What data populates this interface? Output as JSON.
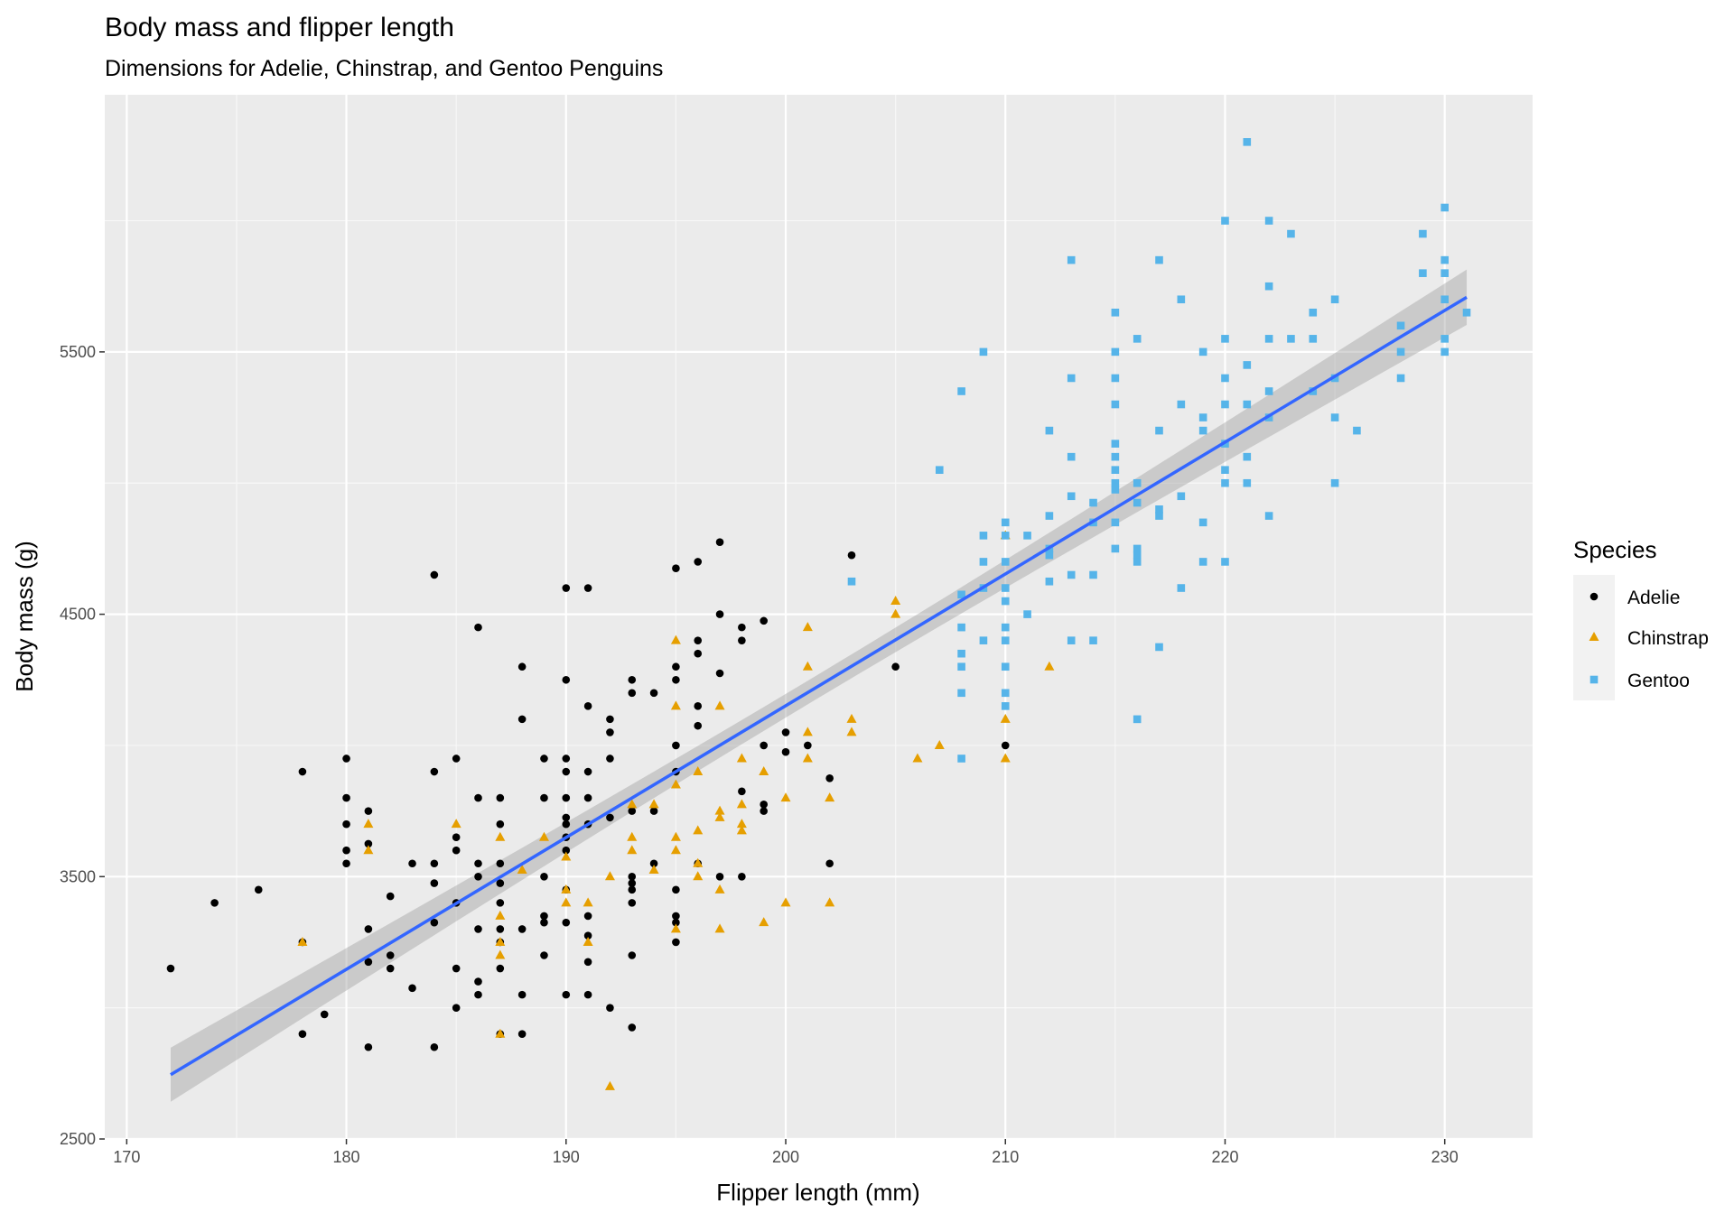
{
  "chart_data": {
    "type": "scatter",
    "title": "Body mass and flipper length",
    "subtitle": "Dimensions for Adelie, Chinstrap, and Gentoo Penguins",
    "xlabel": "Flipper length (mm)",
    "ylabel": "Body mass (g)",
    "xlim": [
      169,
      234
    ],
    "ylim": [
      2500,
      6480
    ],
    "x_ticks": [
      170,
      180,
      190,
      200,
      210,
      220,
      230
    ],
    "y_ticks": [
      2500,
      3500,
      4500,
      5500
    ],
    "grid": true,
    "background": "#EBEBEB",
    "legend": {
      "title": "Species",
      "placement": "right"
    },
    "trend": {
      "method": "linear regression",
      "color": "#3366FF",
      "confidence_band": true,
      "band_color": "#999999"
    },
    "series": [
      {
        "name": "Adelie",
        "color": "#000000",
        "marker": "circle",
        "points": [
          [
            172,
            3150
          ],
          [
            174,
            3400
          ],
          [
            176,
            3450
          ],
          [
            178,
            3900
          ],
          [
            178,
            3250
          ],
          [
            178,
            2900
          ],
          [
            179,
            2975
          ],
          [
            180,
            3950
          ],
          [
            180,
            3800
          ],
          [
            180,
            3700
          ],
          [
            180,
            3600
          ],
          [
            180,
            3550
          ],
          [
            181,
            3750
          ],
          [
            181,
            3625
          ],
          [
            181,
            3300
          ],
          [
            181,
            3175
          ],
          [
            181,
            2850
          ],
          [
            182,
            3425
          ],
          [
            182,
            3200
          ],
          [
            182,
            3150
          ],
          [
            183,
            3550
          ],
          [
            183,
            3075
          ],
          [
            184,
            4650
          ],
          [
            184,
            3900
          ],
          [
            184,
            3550
          ],
          [
            184,
            3475
          ],
          [
            184,
            3325
          ],
          [
            184,
            2850
          ],
          [
            185,
            3950
          ],
          [
            185,
            3650
          ],
          [
            185,
            3600
          ],
          [
            185,
            3400
          ],
          [
            185,
            3150
          ],
          [
            185,
            3000
          ],
          [
            186,
            4450
          ],
          [
            186,
            3800
          ],
          [
            186,
            3550
          ],
          [
            186,
            3500
          ],
          [
            186,
            3300
          ],
          [
            186,
            3100
          ],
          [
            186,
            3050
          ],
          [
            187,
            3800
          ],
          [
            187,
            3700
          ],
          [
            187,
            3550
          ],
          [
            187,
            3475
          ],
          [
            187,
            3400
          ],
          [
            187,
            3300
          ],
          [
            187,
            3250
          ],
          [
            187,
            3150
          ],
          [
            187,
            2900
          ],
          [
            188,
            4300
          ],
          [
            188,
            4100
          ],
          [
            188,
            3300
          ],
          [
            188,
            3050
          ],
          [
            188,
            2900
          ],
          [
            189,
            3950
          ],
          [
            189,
            3800
          ],
          [
            189,
            3500
          ],
          [
            189,
            3350
          ],
          [
            189,
            3325
          ],
          [
            189,
            3200
          ],
          [
            190,
            4600
          ],
          [
            190,
            4250
          ],
          [
            190,
            3950
          ],
          [
            190,
            3900
          ],
          [
            190,
            3800
          ],
          [
            190,
            3725
          ],
          [
            190,
            3700
          ],
          [
            190,
            3650
          ],
          [
            190,
            3600
          ],
          [
            190,
            3450
          ],
          [
            190,
            3325
          ],
          [
            190,
            3050
          ],
          [
            191,
            4600
          ],
          [
            191,
            4150
          ],
          [
            191,
            3900
          ],
          [
            191,
            3800
          ],
          [
            191,
            3700
          ],
          [
            191,
            3350
          ],
          [
            191,
            3275
          ],
          [
            191,
            3175
          ],
          [
            191,
            3050
          ],
          [
            192,
            4100
          ],
          [
            192,
            4050
          ],
          [
            192,
            3950
          ],
          [
            192,
            3725
          ],
          [
            192,
            3000
          ],
          [
            193,
            4250
          ],
          [
            193,
            4200
          ],
          [
            193,
            3750
          ],
          [
            193,
            3500
          ],
          [
            193,
            3475
          ],
          [
            193,
            3450
          ],
          [
            193,
            3400
          ],
          [
            193,
            3200
          ],
          [
            193,
            2925
          ],
          [
            194,
            4200
          ],
          [
            194,
            3750
          ],
          [
            194,
            3550
          ],
          [
            195,
            4675
          ],
          [
            195,
            4300
          ],
          [
            195,
            4250
          ],
          [
            195,
            4000
          ],
          [
            195,
            3900
          ],
          [
            195,
            3450
          ],
          [
            195,
            3350
          ],
          [
            195,
            3325
          ],
          [
            195,
            3250
          ],
          [
            196,
            4700
          ],
          [
            196,
            4400
          ],
          [
            196,
            4350
          ],
          [
            196,
            4150
          ],
          [
            196,
            4075
          ],
          [
            196,
            3550
          ],
          [
            197,
            4775
          ],
          [
            197,
            4500
          ],
          [
            197,
            4275
          ],
          [
            197,
            3500
          ],
          [
            198,
            4450
          ],
          [
            198,
            4400
          ],
          [
            198,
            3825
          ],
          [
            198,
            3500
          ],
          [
            199,
            4475
          ],
          [
            199,
            4000
          ],
          [
            199,
            3775
          ],
          [
            199,
            3750
          ],
          [
            200,
            4050
          ],
          [
            200,
            3975
          ],
          [
            201,
            4000
          ],
          [
            202,
            3875
          ],
          [
            202,
            3550
          ],
          [
            203,
            4725
          ],
          [
            205,
            4300
          ],
          [
            210,
            4000
          ]
        ]
      },
      {
        "name": "Chinstrap",
        "color": "#E69F00",
        "marker": "triangle",
        "points": [
          [
            178,
            3250
          ],
          [
            181,
            3700
          ],
          [
            181,
            3600
          ],
          [
            185,
            3700
          ],
          [
            187,
            3650
          ],
          [
            187,
            3350
          ],
          [
            187,
            3250
          ],
          [
            187,
            3200
          ],
          [
            187,
            2900
          ],
          [
            188,
            3525
          ],
          [
            189,
            3650
          ],
          [
            190,
            3575
          ],
          [
            190,
            3450
          ],
          [
            190,
            3400
          ],
          [
            191,
            3400
          ],
          [
            191,
            3250
          ],
          [
            192,
            3500
          ],
          [
            192,
            2700
          ],
          [
            193,
            3775
          ],
          [
            193,
            3650
          ],
          [
            193,
            3600
          ],
          [
            194,
            3775
          ],
          [
            194,
            3525
          ],
          [
            195,
            4400
          ],
          [
            195,
            4150
          ],
          [
            195,
            3850
          ],
          [
            195,
            3650
          ],
          [
            195,
            3600
          ],
          [
            195,
            3300
          ],
          [
            196,
            3900
          ],
          [
            196,
            3675
          ],
          [
            196,
            3550
          ],
          [
            196,
            3500
          ],
          [
            197,
            4150
          ],
          [
            197,
            3750
          ],
          [
            197,
            3725
          ],
          [
            197,
            3450
          ],
          [
            197,
            3300
          ],
          [
            198,
            3950
          ],
          [
            198,
            3775
          ],
          [
            198,
            3700
          ],
          [
            198,
            3675
          ],
          [
            199,
            3900
          ],
          [
            199,
            3325
          ],
          [
            200,
            3800
          ],
          [
            200,
            3400
          ],
          [
            201,
            4450
          ],
          [
            201,
            4300
          ],
          [
            201,
            4050
          ],
          [
            201,
            3950
          ],
          [
            202,
            3800
          ],
          [
            202,
            3400
          ],
          [
            203,
            4100
          ],
          [
            203,
            4050
          ],
          [
            205,
            4550
          ],
          [
            205,
            4500
          ],
          [
            206,
            3950
          ],
          [
            207,
            4000
          ],
          [
            210,
            4800
          ],
          [
            210,
            4100
          ],
          [
            210,
            3950
          ],
          [
            212,
            4300
          ]
        ]
      },
      {
        "name": "Gentoo",
        "color": "#56B4E9",
        "marker": "square",
        "points": [
          [
            203,
            4625
          ],
          [
            207,
            5050
          ],
          [
            208,
            5350
          ],
          [
            208,
            4575
          ],
          [
            208,
            4450
          ],
          [
            208,
            4350
          ],
          [
            208,
            4300
          ],
          [
            208,
            4200
          ],
          [
            208,
            3950
          ],
          [
            209,
            5500
          ],
          [
            209,
            4800
          ],
          [
            209,
            4700
          ],
          [
            209,
            4600
          ],
          [
            209,
            4400
          ],
          [
            210,
            4850
          ],
          [
            210,
            4800
          ],
          [
            210,
            4700
          ],
          [
            210,
            4600
          ],
          [
            210,
            4550
          ],
          [
            210,
            4450
          ],
          [
            210,
            4400
          ],
          [
            210,
            4300
          ],
          [
            210,
            4200
          ],
          [
            210,
            4150
          ],
          [
            211,
            4800
          ],
          [
            211,
            4500
          ],
          [
            212,
            5200
          ],
          [
            212,
            4875
          ],
          [
            212,
            4750
          ],
          [
            212,
            4725
          ],
          [
            212,
            4625
          ],
          [
            213,
            5850
          ],
          [
            213,
            5400
          ],
          [
            213,
            5100
          ],
          [
            213,
            4950
          ],
          [
            213,
            4650
          ],
          [
            213,
            4400
          ],
          [
            214,
            4925
          ],
          [
            214,
            4850
          ],
          [
            214,
            4650
          ],
          [
            214,
            4400
          ],
          [
            215,
            5650
          ],
          [
            215,
            5500
          ],
          [
            215,
            5400
          ],
          [
            215,
            5300
          ],
          [
            215,
            5150
          ],
          [
            215,
            5100
          ],
          [
            215,
            5050
          ],
          [
            215,
            5000
          ],
          [
            215,
            4975
          ],
          [
            215,
            4850
          ],
          [
            215,
            4750
          ],
          [
            216,
            5550
          ],
          [
            216,
            5000
          ],
          [
            216,
            4925
          ],
          [
            216,
            4750
          ],
          [
            216,
            4725
          ],
          [
            216,
            4700
          ],
          [
            216,
            4100
          ],
          [
            217,
            5850
          ],
          [
            217,
            5200
          ],
          [
            217,
            4900
          ],
          [
            217,
            4875
          ],
          [
            217,
            4375
          ],
          [
            218,
            5700
          ],
          [
            218,
            5300
          ],
          [
            218,
            4950
          ],
          [
            218,
            4600
          ],
          [
            219,
            5500
          ],
          [
            219,
            5250
          ],
          [
            219,
            5200
          ],
          [
            219,
            4850
          ],
          [
            219,
            4700
          ],
          [
            220,
            6000
          ],
          [
            220,
            5550
          ],
          [
            220,
            5400
          ],
          [
            220,
            5300
          ],
          [
            220,
            5150
          ],
          [
            220,
            5050
          ],
          [
            220,
            5000
          ],
          [
            220,
            4700
          ],
          [
            221,
            6300
          ],
          [
            221,
            5450
          ],
          [
            221,
            5300
          ],
          [
            221,
            5100
          ],
          [
            221,
            5000
          ],
          [
            222,
            6000
          ],
          [
            222,
            5750
          ],
          [
            222,
            5550
          ],
          [
            222,
            5350
          ],
          [
            222,
            5250
          ],
          [
            222,
            4875
          ],
          [
            223,
            5950
          ],
          [
            223,
            5550
          ],
          [
            224,
            5650
          ],
          [
            224,
            5550
          ],
          [
            224,
            5350
          ],
          [
            225,
            5700
          ],
          [
            225,
            5400
          ],
          [
            225,
            5250
          ],
          [
            225,
            5000
          ],
          [
            226,
            5200
          ],
          [
            228,
            5600
          ],
          [
            228,
            5500
          ],
          [
            228,
            5400
          ],
          [
            229,
            5950
          ],
          [
            229,
            5800
          ],
          [
            230,
            6050
          ],
          [
            230,
            5850
          ],
          [
            230,
            5800
          ],
          [
            230,
            5700
          ],
          [
            230,
            5550
          ],
          [
            230,
            5500
          ],
          [
            231,
            5650
          ]
        ]
      }
    ]
  }
}
